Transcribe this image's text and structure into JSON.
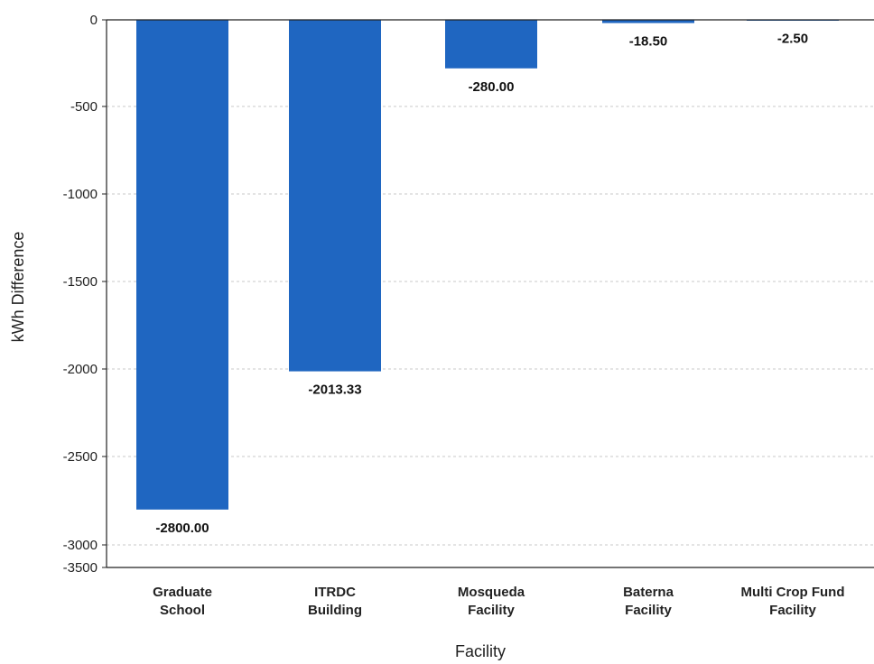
{
  "chart_data": {
    "type": "bar",
    "categories": [
      [
        "Graduate",
        "School"
      ],
      [
        "ITRDC",
        "Building"
      ],
      [
        "Mosqueda",
        "Facility"
      ],
      [
        "Baterna",
        "Facility"
      ],
      [
        "Multi Crop Fund",
        "Facility"
      ]
    ],
    "values": [
      -2800.0,
      -2013.33,
      -280.0,
      -18.5,
      -2.5
    ],
    "data_labels": [
      "-2800.00",
      "-2013.33",
      "-280.00",
      "-18.50",
      "-2.50"
    ],
    "xlabel": "Facility",
    "ylabel": "kWh Difference",
    "ylim": [
      -3500,
      0
    ],
    "yticks": [
      0,
      -500,
      -1000,
      -1500,
      -2000,
      -2500,
      -3000,
      -3500
    ],
    "grid": true,
    "bar_color": "#1f66c1",
    "grid_color": "#c8c8c8"
  }
}
